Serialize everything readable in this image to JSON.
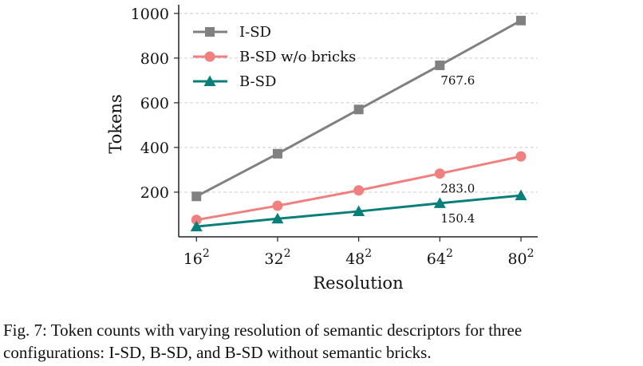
{
  "chart_data": {
    "type": "line",
    "xlabel": "Resolution",
    "ylabel": "Tokens",
    "x": [
      16,
      32,
      48,
      64,
      80
    ],
    "xtick_labels": [
      {
        "base": "16",
        "exp": "2"
      },
      {
        "base": "32",
        "exp": "2"
      },
      {
        "base": "48",
        "exp": "2"
      },
      {
        "base": "64",
        "exp": "2"
      },
      {
        "base": "80",
        "exp": "2"
      }
    ],
    "yticks": [
      200,
      400,
      600,
      800,
      1000
    ],
    "ylim": [
      0,
      1010
    ],
    "grid": "horizontal dashed",
    "legend_position": "top-left",
    "series": [
      {
        "name": "I-SD",
        "values": [
          181,
          372,
          570,
          767.6,
          968
        ],
        "color": "#808080",
        "marker": "square"
      },
      {
        "name": "B-SD w/o bricks",
        "values": [
          76,
          139,
          208,
          283.0,
          360
        ],
        "color": "#f08080",
        "marker": "circle"
      },
      {
        "name": "B-SD",
        "values": [
          46,
          81,
          114,
          150.4,
          185
        ],
        "color": "#0a7f7a",
        "marker": "triangle"
      }
    ],
    "annotations": [
      {
        "text": "767.6",
        "x": 64,
        "series": "I-SD"
      },
      {
        "text": "283.0",
        "x": 64,
        "series": "B-SD w/o bricks"
      },
      {
        "text": "150.4",
        "x": 64,
        "series": "B-SD"
      }
    ]
  },
  "caption": {
    "line1": "Fig. 7: Token counts with varying resolution of semantic descriptors for three",
    "line2": "configurations: I-SD, B-SD, and B-SD without semantic bricks."
  }
}
